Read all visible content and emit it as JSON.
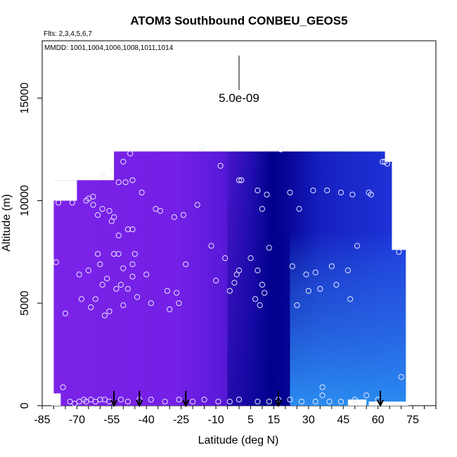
{
  "chart_data": {
    "type": "heatmap",
    "title": "ATOM3 Southbound CONBEU_GEOS5",
    "flights_label": "Flts: 2,3,4,5,6,7",
    "dates_label": "MMDD: 1001,1004,1006,1008,1011,1014",
    "xlabel": "Latitude (deg N)",
    "ylabel": "Altitude (m)",
    "xlim": [
      -85,
      85
    ],
    "ylim": [
      0,
      17800
    ],
    "x_ticks": [
      -85,
      -70,
      -55,
      -40,
      -25,
      -10,
      5,
      15,
      30,
      45,
      60,
      75
    ],
    "x_minor_step": 5,
    "y_ticks": [
      0,
      5000,
      10000,
      15000
    ],
    "scale_label": "5.0e-09",
    "grid": false,
    "legend": "none",
    "colors": {
      "low": "#7b22e8",
      "high_core": "#00008b",
      "mid_blue": "#1a1aa8",
      "north_low": "#2a8cf0",
      "marker_stroke": "#e8e8ff",
      "arrow": "#000000"
    },
    "field_regions": [
      {
        "lat_range": [
          -80,
          -30
        ],
        "alt_range": [
          0,
          12400
        ],
        "value": "low",
        "color": "#7b22e8"
      },
      {
        "lat_range": [
          -30,
          0
        ],
        "alt_range": [
          0,
          12400
        ],
        "value": "low-mid",
        "color": "#6a1ee0"
      },
      {
        "lat_range": [
          0,
          20
        ],
        "alt_range": [
          0,
          12400
        ],
        "value": "high",
        "color": "#00008b"
      },
      {
        "lat_range": [
          20,
          72
        ],
        "alt_range": [
          5000,
          12400
        ],
        "value": "mid",
        "color": "#1a2ad0"
      },
      {
        "lat_range": [
          20,
          72
        ],
        "alt_range": [
          0,
          5000
        ],
        "value": "mid-low",
        "color": "#2a8cf0"
      }
    ],
    "sounding_arrows_lat": [
      -54,
      -43,
      -23,
      17,
      61
    ],
    "sample_points": [
      {
        "lat": -79,
        "alt": 7000
      },
      {
        "lat": -78,
        "alt": 9900
      },
      {
        "lat": -75,
        "alt": 4500
      },
      {
        "lat": -72,
        "alt": 9900
      },
      {
        "lat": -69,
        "alt": 6400
      },
      {
        "lat": -68,
        "alt": 5200
      },
      {
        "lat": -66,
        "alt": 10000
      },
      {
        "lat": -65,
        "alt": 10100
      },
      {
        "lat": -65,
        "alt": 6600
      },
      {
        "lat": -64,
        "alt": 4800
      },
      {
        "lat": -63,
        "alt": 10200
      },
      {
        "lat": -63,
        "alt": 9800
      },
      {
        "lat": -62,
        "alt": 5200
      },
      {
        "lat": -61,
        "alt": 9300
      },
      {
        "lat": -61,
        "alt": 7400
      },
      {
        "lat": -60,
        "alt": 6900
      },
      {
        "lat": -59,
        "alt": 11200
      },
      {
        "lat": -59,
        "alt": 9600
      },
      {
        "lat": -59,
        "alt": 5900
      },
      {
        "lat": -58,
        "alt": 4400
      },
      {
        "lat": -57,
        "alt": 6200
      },
      {
        "lat": -56,
        "alt": 9500
      },
      {
        "lat": -56,
        "alt": 4600
      },
      {
        "lat": -55,
        "alt": 9000
      },
      {
        "lat": -54,
        "alt": 9200
      },
      {
        "lat": -54,
        "alt": 7400
      },
      {
        "lat": -53,
        "alt": 5700
      },
      {
        "lat": -52,
        "alt": 10900
      },
      {
        "lat": -52,
        "alt": 7400
      },
      {
        "lat": -52,
        "alt": 8300
      },
      {
        "lat": -51,
        "alt": 5900
      },
      {
        "lat": -50,
        "alt": 11900
      },
      {
        "lat": -50,
        "alt": 6700
      },
      {
        "lat": -50,
        "alt": 4900
      },
      {
        "lat": -49,
        "alt": 10900
      },
      {
        "lat": -48,
        "alt": 5700
      },
      {
        "lat": -48,
        "alt": 8600
      },
      {
        "lat": -47,
        "alt": 12300
      },
      {
        "lat": -46,
        "alt": 11000
      },
      {
        "lat": -46,
        "alt": 8600
      },
      {
        "lat": -46,
        "alt": 6900
      },
      {
        "lat": -46,
        "alt": 6300
      },
      {
        "lat": -45,
        "alt": 7400
      },
      {
        "lat": -44,
        "alt": 5300
      },
      {
        "lat": -42,
        "alt": 10400
      },
      {
        "lat": -40,
        "alt": 6400
      },
      {
        "lat": -38,
        "alt": 5000
      },
      {
        "lat": -36,
        "alt": 9600
      },
      {
        "lat": -34,
        "alt": 9500
      },
      {
        "lat": -31,
        "alt": 5600
      },
      {
        "lat": -30,
        "alt": 4700
      },
      {
        "lat": -28,
        "alt": 9200
      },
      {
        "lat": -27,
        "alt": 5500
      },
      {
        "lat": -26,
        "alt": 5000
      },
      {
        "lat": -24,
        "alt": 9300
      },
      {
        "lat": -23,
        "alt": 6900
      },
      {
        "lat": -18,
        "alt": 9800
      },
      {
        "lat": -16,
        "alt": 12600
      },
      {
        "lat": -12,
        "alt": 7800
      },
      {
        "lat": -10,
        "alt": 6100
      },
      {
        "lat": -8,
        "alt": 11700
      },
      {
        "lat": -6,
        "alt": 7200
      },
      {
        "lat": -4,
        "alt": 5600
      },
      {
        "lat": -2,
        "alt": 6000
      },
      {
        "lat": -1,
        "alt": 6400
      },
      {
        "lat": 0,
        "alt": 6600
      },
      {
        "lat": 0,
        "alt": 11000
      },
      {
        "lat": 1,
        "alt": 11000
      },
      {
        "lat": 5,
        "alt": 7200
      },
      {
        "lat": 7,
        "alt": 5200
      },
      {
        "lat": 8,
        "alt": 6600
      },
      {
        "lat": 8,
        "alt": 10500
      },
      {
        "lat": 9,
        "alt": 4900
      },
      {
        "lat": 10,
        "alt": 9600
      },
      {
        "lat": 10,
        "alt": 5900
      },
      {
        "lat": 11,
        "alt": 5500
      },
      {
        "lat": 12,
        "alt": 10300
      },
      {
        "lat": 13,
        "alt": 7700
      },
      {
        "lat": 18,
        "alt": 12500
      },
      {
        "lat": 22,
        "alt": 10400
      },
      {
        "lat": 23,
        "alt": 6800
      },
      {
        "lat": 25,
        "alt": 4900
      },
      {
        "lat": 26,
        "alt": 9600
      },
      {
        "lat": 29,
        "alt": 6400
      },
      {
        "lat": 30,
        "alt": 5600
      },
      {
        "lat": 32,
        "alt": 10500
      },
      {
        "lat": 33,
        "alt": 6500
      },
      {
        "lat": 35,
        "alt": 5700
      },
      {
        "lat": 38,
        "alt": 10500
      },
      {
        "lat": 40,
        "alt": 6800
      },
      {
        "lat": 42,
        "alt": 5900
      },
      {
        "lat": 44,
        "alt": 10400
      },
      {
        "lat": 47,
        "alt": 6600
      },
      {
        "lat": 48,
        "alt": 5200
      },
      {
        "lat": 49,
        "alt": 10300
      },
      {
        "lat": 51,
        "alt": 7800
      },
      {
        "lat": 56,
        "alt": 10400
      },
      {
        "lat": 57,
        "alt": 10300
      },
      {
        "lat": 62,
        "alt": 11900
      },
      {
        "lat": 63,
        "alt": 11900
      },
      {
        "lat": 64,
        "alt": 11800
      },
      {
        "lat": 69,
        "alt": 7500
      },
      {
        "lat": 70,
        "alt": 1400
      },
      {
        "lat": -76,
        "alt": 900
      },
      {
        "lat": -73,
        "alt": 200
      },
      {
        "lat": -71,
        "alt": 100
      },
      {
        "lat": -69,
        "alt": 200
      },
      {
        "lat": -67,
        "alt": 300
      },
      {
        "lat": -66,
        "alt": 200
      },
      {
        "lat": -64,
        "alt": 300
      },
      {
        "lat": -62,
        "alt": 200
      },
      {
        "lat": -60,
        "alt": 300
      },
      {
        "lat": -58,
        "alt": 300
      },
      {
        "lat": -56,
        "alt": 200
      },
      {
        "lat": -51,
        "alt": 300
      },
      {
        "lat": -48,
        "alt": 200
      },
      {
        "lat": -43,
        "alt": 300
      },
      {
        "lat": -38,
        "alt": 300
      },
      {
        "lat": -32,
        "alt": 200
      },
      {
        "lat": -26,
        "alt": 300
      },
      {
        "lat": -20,
        "alt": 200
      },
      {
        "lat": -15,
        "alt": 300
      },
      {
        "lat": -9,
        "alt": 200
      },
      {
        "lat": -4,
        "alt": 200
      },
      {
        "lat": 0,
        "alt": 300
      },
      {
        "lat": 8,
        "alt": 200
      },
      {
        "lat": 13,
        "alt": 200
      },
      {
        "lat": 17,
        "alt": 300
      },
      {
        "lat": 22,
        "alt": 300
      },
      {
        "lat": 27,
        "alt": 200
      },
      {
        "lat": 33,
        "alt": 200
      },
      {
        "lat": 36,
        "alt": 900
      },
      {
        "lat": 36,
        "alt": 500
      },
      {
        "lat": 39,
        "alt": 200
      },
      {
        "lat": 44,
        "alt": 200
      },
      {
        "lat": 50,
        "alt": 300
      },
      {
        "lat": 55,
        "alt": 500
      },
      {
        "lat": 60,
        "alt": 300
      }
    ]
  }
}
